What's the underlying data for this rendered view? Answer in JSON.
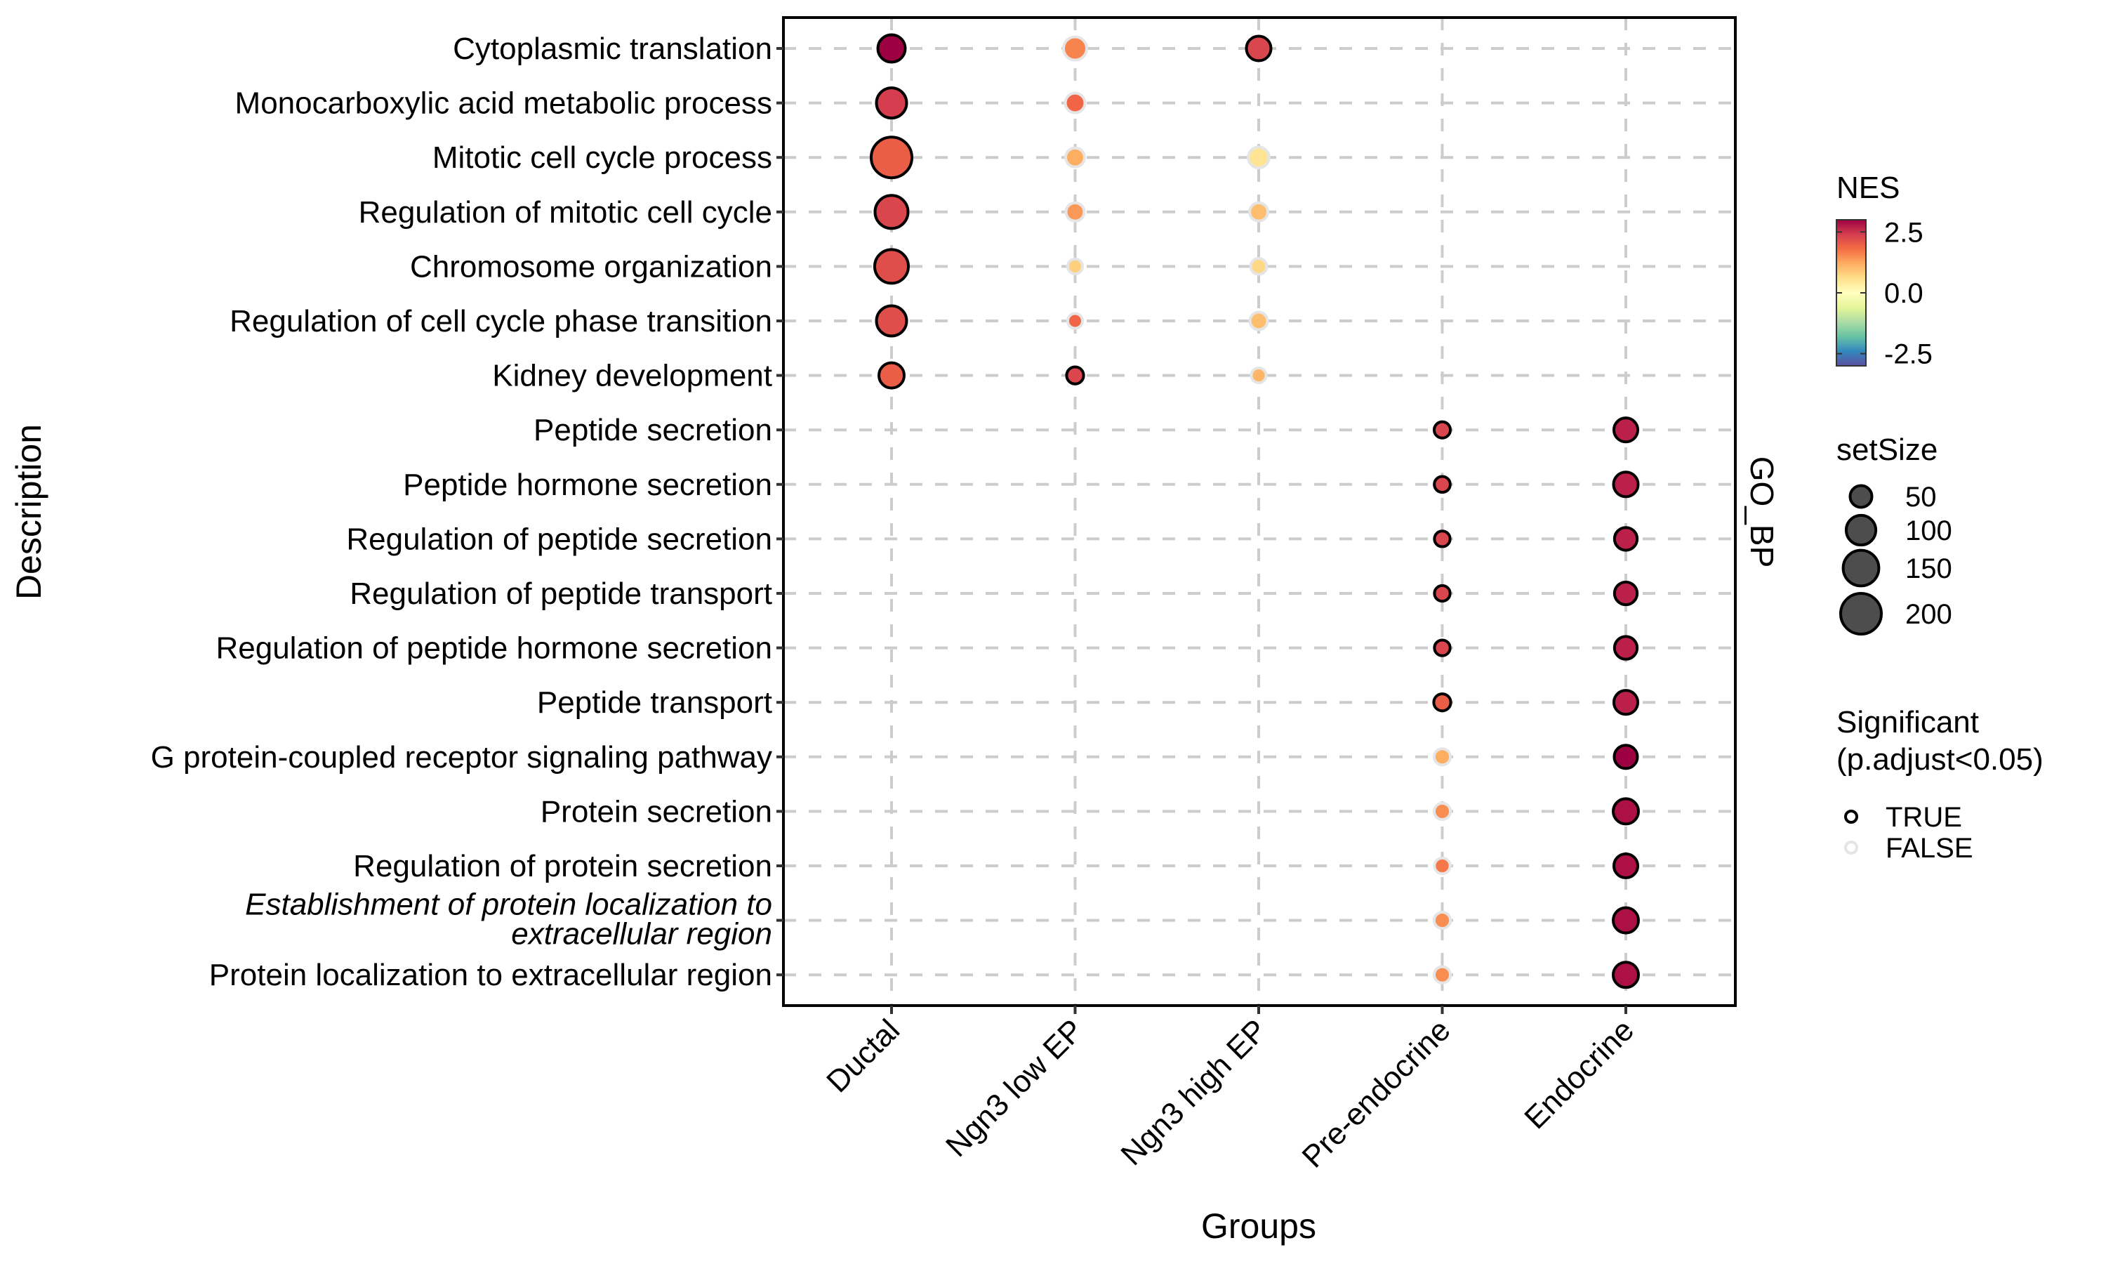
{
  "chart_data": {
    "type": "scatter",
    "subtype": "dot-plot",
    "xlabel": "Groups",
    "ylabel": "Description",
    "facet_label": "GO_BP",
    "categories": [
      "Ductal",
      "Ngn3 low EP",
      "Ngn3 high EP",
      "Pre-endocrine",
      "Endocrine"
    ],
    "terms": [
      {
        "label": "Cytoplasmic translation",
        "italic": false
      },
      {
        "label": "Monocarboxylic acid metabolic process",
        "italic": false
      },
      {
        "label": "Mitotic cell cycle process",
        "italic": false
      },
      {
        "label": "Regulation of mitotic cell cycle",
        "italic": false
      },
      {
        "label": "Chromosome organization",
        "italic": false
      },
      {
        "label": "Regulation of cell cycle phase transition",
        "italic": false
      },
      {
        "label": "Kidney development",
        "italic": false
      },
      {
        "label": "Peptide secretion",
        "italic": false
      },
      {
        "label": "Peptide hormone secretion",
        "italic": false
      },
      {
        "label": "Regulation of peptide secretion",
        "italic": false
      },
      {
        "label": "Regulation of peptide transport",
        "italic": false
      },
      {
        "label": "Regulation of peptide hormone secretion",
        "italic": false
      },
      {
        "label": "Peptide transport",
        "italic": false
      },
      {
        "label": "G protein-coupled receptor signaling pathway",
        "italic": false
      },
      {
        "label": "Protein secretion",
        "italic": false
      },
      {
        "label": "Regulation of protein secretion",
        "italic": false
      },
      {
        "label": "Establishment of protein localization to\nextracellular region",
        "italic": true
      },
      {
        "label": "Protein localization to extracellular region",
        "italic": false
      }
    ],
    "points": [
      {
        "group": "Ductal",
        "term": 0,
        "NES": 3.0,
        "setSize": 84,
        "significant": true
      },
      {
        "group": "Ductal",
        "term": 1,
        "NES": 2.4,
        "setSize": 104,
        "significant": true
      },
      {
        "group": "Ductal",
        "term": 2,
        "NES": 2.0,
        "setSize": 200,
        "significant": true
      },
      {
        "group": "Ductal",
        "term": 3,
        "NES": 2.3,
        "setSize": 127,
        "significant": true
      },
      {
        "group": "Ductal",
        "term": 4,
        "NES": 2.2,
        "setSize": 133,
        "significant": true
      },
      {
        "group": "Ductal",
        "term": 5,
        "NES": 2.2,
        "setSize": 104,
        "significant": true
      },
      {
        "group": "Ductal",
        "term": 6,
        "NES": 2.0,
        "setSize": 70,
        "significant": true
      },
      {
        "group": "Ngn3 low EP",
        "term": 0,
        "NES": 1.6,
        "setSize": 58,
        "significant": false
      },
      {
        "group": "Ngn3 low EP",
        "term": 1,
        "NES": 1.9,
        "setSize": 39,
        "significant": false
      },
      {
        "group": "Ngn3 low EP",
        "term": 2,
        "NES": 1.2,
        "setSize": 36,
        "significant": false
      },
      {
        "group": "Ngn3 low EP",
        "term": 3,
        "NES": 1.4,
        "setSize": 33,
        "significant": false
      },
      {
        "group": "Ngn3 low EP",
        "term": 4,
        "NES": 0.8,
        "setSize": 20,
        "significant": false
      },
      {
        "group": "Ngn3 low EP",
        "term": 5,
        "NES": 1.9,
        "setSize": 20,
        "significant": false
      },
      {
        "group": "Ngn3 low EP",
        "term": 6,
        "NES": 2.3,
        "setSize": 28,
        "significant": true
      },
      {
        "group": "Ngn3 high EP",
        "term": 0,
        "NES": 2.3,
        "setSize": 66,
        "significant": true
      },
      {
        "group": "Ngn3 high EP",
        "term": 2,
        "NES": 0.5,
        "setSize": 45,
        "significant": false
      },
      {
        "group": "Ngn3 high EP",
        "term": 3,
        "NES": 1.0,
        "setSize": 33,
        "significant": false
      },
      {
        "group": "Ngn3 high EP",
        "term": 4,
        "NES": 0.7,
        "setSize": 24,
        "significant": false
      },
      {
        "group": "Ngn3 high EP",
        "term": 5,
        "NES": 1.0,
        "setSize": 30,
        "significant": false
      },
      {
        "group": "Ngn3 high EP",
        "term": 6,
        "NES": 1.1,
        "setSize": 20,
        "significant": false
      },
      {
        "group": "Pre-endocrine",
        "term": 7,
        "NES": 2.3,
        "setSize": 25,
        "significant": true
      },
      {
        "group": "Pre-endocrine",
        "term": 8,
        "NES": 2.3,
        "setSize": 24,
        "significant": true
      },
      {
        "group": "Pre-endocrine",
        "term": 9,
        "NES": 2.3,
        "setSize": 23,
        "significant": true
      },
      {
        "group": "Pre-endocrine",
        "term": 10,
        "NES": 2.3,
        "setSize": 23,
        "significant": true
      },
      {
        "group": "Pre-endocrine",
        "term": 11,
        "NES": 2.3,
        "setSize": 23,
        "significant": true
      },
      {
        "group": "Pre-endocrine",
        "term": 12,
        "NES": 2.0,
        "setSize": 28,
        "significant": true
      },
      {
        "group": "Pre-endocrine",
        "term": 13,
        "NES": 1.2,
        "setSize": 25,
        "significant": false
      },
      {
        "group": "Pre-endocrine",
        "term": 14,
        "NES": 1.5,
        "setSize": 25,
        "significant": false
      },
      {
        "group": "Pre-endocrine",
        "term": 15,
        "NES": 1.7,
        "setSize": 23,
        "significant": false
      },
      {
        "group": "Pre-endocrine",
        "term": 16,
        "NES": 1.5,
        "setSize": 25,
        "significant": false
      },
      {
        "group": "Pre-endocrine",
        "term": 17,
        "NES": 1.5,
        "setSize": 25,
        "significant": false
      },
      {
        "group": "Endocrine",
        "term": 7,
        "NES": 2.7,
        "setSize": 62,
        "significant": true
      },
      {
        "group": "Endocrine",
        "term": 8,
        "NES": 2.7,
        "setSize": 66,
        "significant": true
      },
      {
        "group": "Endocrine",
        "term": 9,
        "NES": 2.7,
        "setSize": 55,
        "significant": true
      },
      {
        "group": "Endocrine",
        "term": 10,
        "NES": 2.7,
        "setSize": 55,
        "significant": true
      },
      {
        "group": "Endocrine",
        "term": 11,
        "NES": 2.7,
        "setSize": 55,
        "significant": true
      },
      {
        "group": "Endocrine",
        "term": 12,
        "NES": 2.7,
        "setSize": 62,
        "significant": true
      },
      {
        "group": "Endocrine",
        "term": 13,
        "NES": 3.0,
        "setSize": 58,
        "significant": true
      },
      {
        "group": "Endocrine",
        "term": 14,
        "NES": 2.85,
        "setSize": 70,
        "significant": true
      },
      {
        "group": "Endocrine",
        "term": 15,
        "NES": 2.85,
        "setSize": 62,
        "significant": true
      },
      {
        "group": "Endocrine",
        "term": 16,
        "NES": 2.85,
        "setSize": 70,
        "significant": true
      },
      {
        "group": "Endocrine",
        "term": 17,
        "NES": 2.85,
        "setSize": 70,
        "significant": true
      }
    ],
    "color_scale": {
      "title": "NES",
      "range": [
        -3,
        3
      ],
      "ticks": [
        2.5,
        0.0,
        -2.5
      ],
      "tick_labels": [
        "2.5",
        "0.0",
        "-2.5"
      ],
      "palette": [
        "#5e4fa2",
        "#3288bd",
        "#66c2a5",
        "#abdda4",
        "#e6f598",
        "#ffffbf",
        "#fee08b",
        "#fdae61",
        "#f46d43",
        "#d53e4f",
        "#9e0142"
      ]
    },
    "size_scale": {
      "title": "setSize",
      "breaks": [
        50,
        100,
        150,
        200
      ],
      "labels": [
        "50",
        "100",
        "150",
        "200"
      ],
      "legend_fill": "#4d4d4d"
    },
    "significance": {
      "title_line1": "Significant",
      "title_line2": "(p.adjust<0.05)",
      "items": [
        {
          "label": "TRUE",
          "stroke": "#000000"
        },
        {
          "label": "FALSE",
          "stroke": "#e5e5e5"
        }
      ]
    },
    "grid": true,
    "legend_position": "right"
  }
}
